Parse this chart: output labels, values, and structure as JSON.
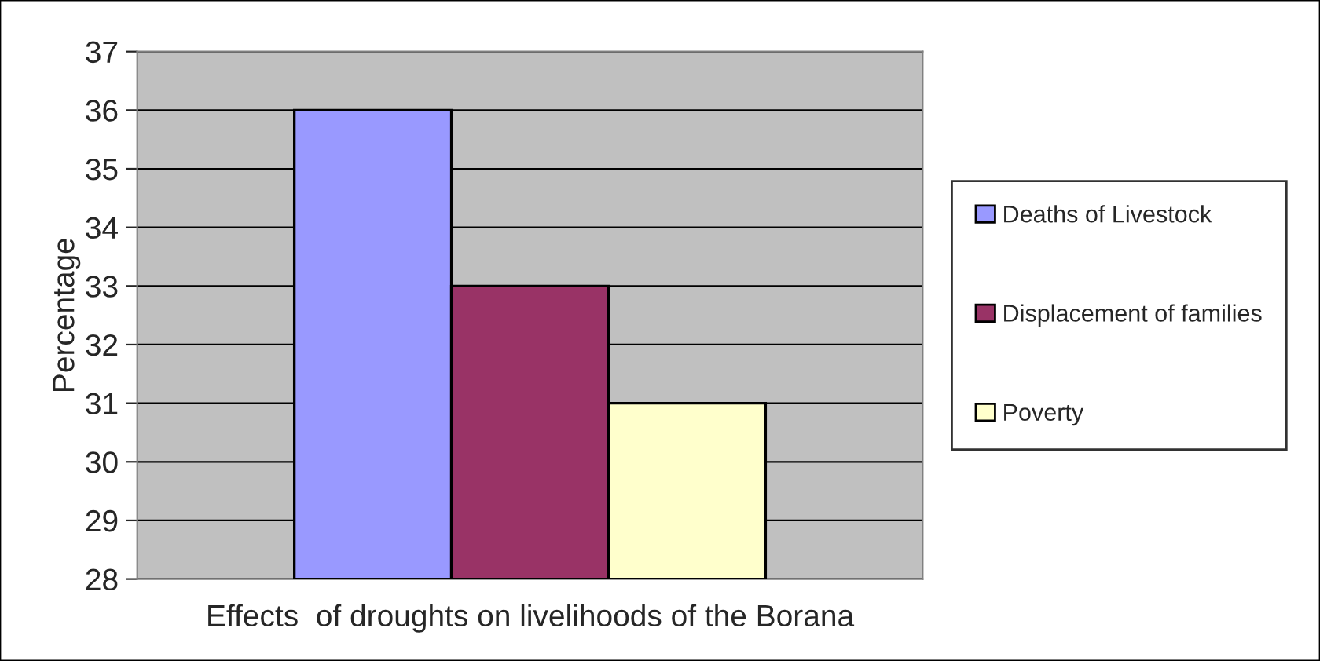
{
  "chart_data": {
    "type": "bar",
    "xlabel": "Effects  of droughts on livelihoods of the Borana",
    "ylabel": "Percentage",
    "categories": [
      null
    ],
    "series": [
      {
        "name": "Deaths of Livestock",
        "color": "#9999ff",
        "values": [
          36
        ]
      },
      {
        "name": "Displacement of families",
        "color": "#993366",
        "values": [
          33
        ]
      },
      {
        "name": "Poverty",
        "color": "#ffffcc",
        "values": [
          31
        ]
      }
    ],
    "ylim": [
      28,
      37
    ],
    "yticks": [
      28,
      29,
      30,
      31,
      32,
      33,
      34,
      35,
      36,
      37
    ],
    "grid": "y",
    "legend": "right"
  }
}
